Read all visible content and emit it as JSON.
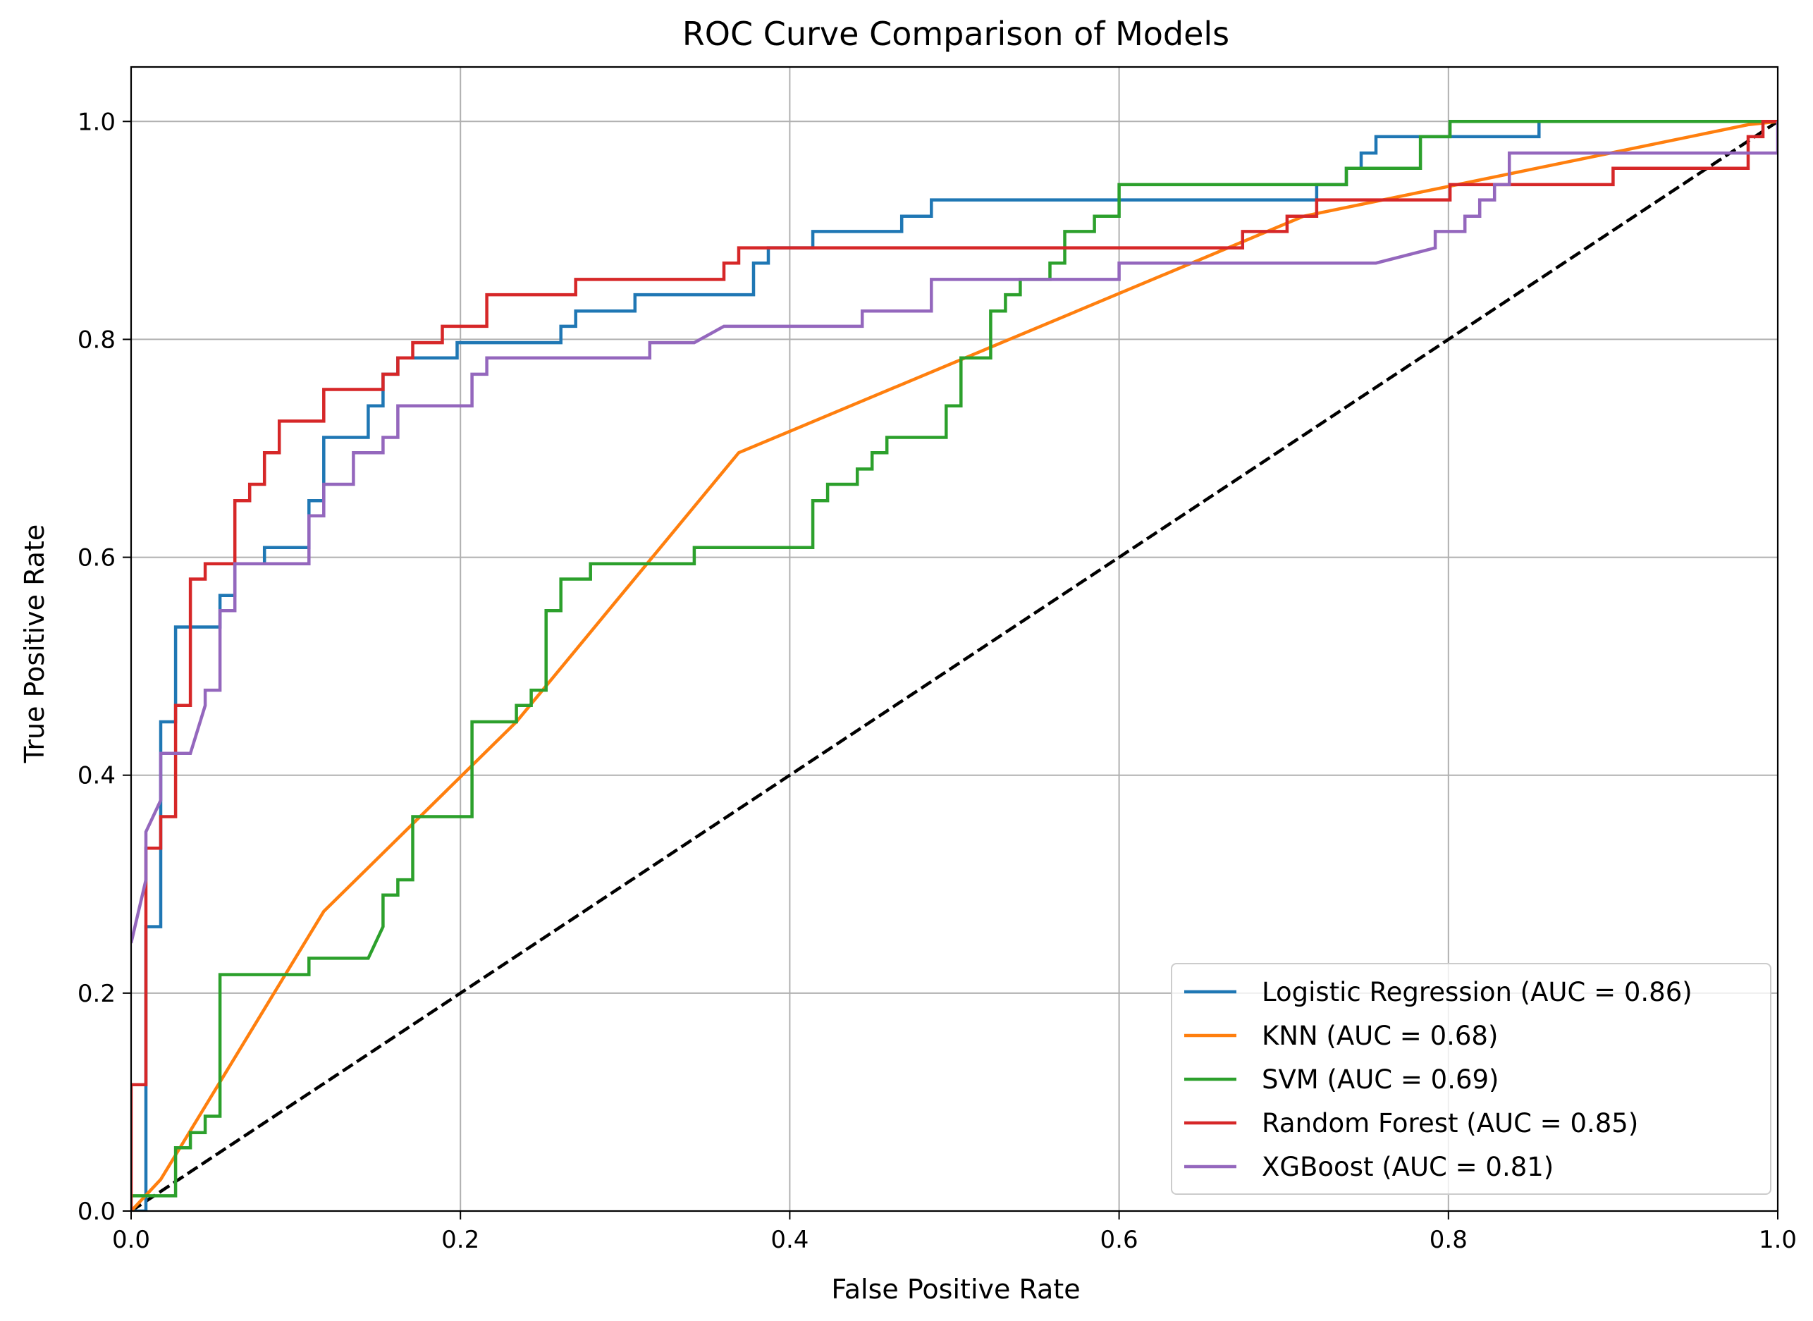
{
  "chart_data": {
    "type": "line",
    "title": "ROC Curve Comparison of Models",
    "xlabel": "False Positive Rate",
    "ylabel": "True Positive Rate",
    "xlim": [
      0.0,
      1.0
    ],
    "ylim": [
      0.0,
      1.05
    ],
    "xticks": [
      "0.0",
      "0.2",
      "0.4",
      "0.6",
      "0.8",
      "1.0"
    ],
    "yticks": [
      "0.0",
      "0.2",
      "0.4",
      "0.6",
      "0.8",
      "1.0"
    ],
    "grid": true,
    "legend_position": "lower-right",
    "series": [
      {
        "name": "Logistic Regression (AUC = 0.86)",
        "color": "#1f77b4",
        "x": [
          0.0,
          0.009,
          0.009,
          0.018,
          0.018,
          0.027,
          0.027,
          0.054,
          0.054,
          0.063,
          0.063,
          0.081,
          0.081,
          0.108,
          0.108,
          0.117,
          0.117,
          0.144,
          0.144,
          0.153,
          0.153,
          0.162,
          0.162,
          0.171,
          0.171,
          0.198,
          0.198,
          0.261,
          0.261,
          0.27,
          0.27,
          0.306,
          0.306,
          0.378,
          0.378,
          0.387,
          0.387,
          0.396,
          0.396,
          0.414,
          0.414,
          0.468,
          0.468,
          0.486,
          0.486,
          0.72,
          0.72,
          0.738,
          0.738,
          0.747,
          0.747,
          0.756,
          0.756,
          0.855,
          0.855,
          1.0
        ],
        "y": [
          0.0,
          0.0,
          0.261,
          0.261,
          0.449,
          0.449,
          0.536,
          0.536,
          0.565,
          0.565,
          0.594,
          0.594,
          0.609,
          0.609,
          0.652,
          0.652,
          0.71,
          0.71,
          0.739,
          0.739,
          0.768,
          0.768,
          0.783,
          0.783,
          0.783,
          0.783,
          0.797,
          0.797,
          0.812,
          0.812,
          0.826,
          0.826,
          0.841,
          0.841,
          0.87,
          0.87,
          0.884,
          0.884,
          0.884,
          0.884,
          0.899,
          0.899,
          0.913,
          0.913,
          0.928,
          0.928,
          0.942,
          0.942,
          0.957,
          0.957,
          0.971,
          0.971,
          0.986,
          0.986,
          1.0,
          1.0
        ]
      },
      {
        "name": "KNN (AUC = 0.68)",
        "color": "#ff7f0e",
        "x": [
          0.0,
          0.018,
          0.117,
          0.234,
          0.369,
          0.712,
          0.982,
          1.0
        ],
        "y": [
          0.0,
          0.029,
          0.275,
          0.449,
          0.696,
          0.913,
          0.997,
          1.0
        ]
      },
      {
        "name": "SVM (AUC = 0.69)",
        "color": "#2ca02c",
        "x": [
          0.0,
          0.0,
          0.027,
          0.027,
          0.036,
          0.036,
          0.045,
          0.045,
          0.054,
          0.054,
          0.108,
          0.108,
          0.144,
          0.153,
          0.153,
          0.162,
          0.162,
          0.171,
          0.171,
          0.207,
          0.207,
          0.234,
          0.234,
          0.243,
          0.243,
          0.252,
          0.252,
          0.261,
          0.261,
          0.279,
          0.279,
          0.342,
          0.342,
          0.414,
          0.414,
          0.423,
          0.423,
          0.441,
          0.441,
          0.45,
          0.45,
          0.459,
          0.459,
          0.477,
          0.477,
          0.495,
          0.495,
          0.504,
          0.504,
          0.522,
          0.522,
          0.531,
          0.531,
          0.54,
          0.54,
          0.558,
          0.558,
          0.567,
          0.567,
          0.585,
          0.585,
          0.6,
          0.6,
          0.738,
          0.738,
          0.783,
          0.783,
          0.801,
          0.801,
          1.0
        ],
        "y": [
          0.0,
          0.014,
          0.014,
          0.058,
          0.058,
          0.072,
          0.072,
          0.087,
          0.087,
          0.217,
          0.217,
          0.232,
          0.232,
          0.261,
          0.29,
          0.29,
          0.304,
          0.304,
          0.362,
          0.362,
          0.449,
          0.449,
          0.464,
          0.464,
          0.478,
          0.478,
          0.551,
          0.551,
          0.58,
          0.58,
          0.594,
          0.594,
          0.609,
          0.609,
          0.652,
          0.652,
          0.667,
          0.667,
          0.681,
          0.681,
          0.696,
          0.696,
          0.71,
          0.71,
          0.71,
          0.71,
          0.739,
          0.739,
          0.783,
          0.783,
          0.826,
          0.826,
          0.841,
          0.841,
          0.855,
          0.855,
          0.87,
          0.87,
          0.899,
          0.899,
          0.913,
          0.913,
          0.942,
          0.942,
          0.957,
          0.957,
          0.986,
          0.986,
          1.0,
          1.0
        ]
      },
      {
        "name": "Random Forest (AUC = 0.85)",
        "color": "#d62728",
        "x": [
          0.0,
          0.0,
          0.009,
          0.009,
          0.018,
          0.018,
          0.027,
          0.027,
          0.036,
          0.036,
          0.045,
          0.045,
          0.054,
          0.054,
          0.063,
          0.063,
          0.072,
          0.072,
          0.081,
          0.081,
          0.09,
          0.09,
          0.117,
          0.117,
          0.153,
          0.153,
          0.162,
          0.162,
          0.171,
          0.171,
          0.189,
          0.189,
          0.216,
          0.216,
          0.27,
          0.27,
          0.36,
          0.36,
          0.369,
          0.369,
          0.675,
          0.675,
          0.702,
          0.702,
          0.72,
          0.72,
          0.801,
          0.801,
          0.9,
          0.9,
          0.982,
          0.982,
          0.991,
          0.991,
          1.0
        ],
        "y": [
          0.0,
          0.116,
          0.116,
          0.333,
          0.333,
          0.362,
          0.362,
          0.464,
          0.464,
          0.58,
          0.58,
          0.594,
          0.594,
          0.594,
          0.594,
          0.652,
          0.652,
          0.667,
          0.667,
          0.696,
          0.696,
          0.725,
          0.725,
          0.754,
          0.754,
          0.768,
          0.768,
          0.783,
          0.783,
          0.797,
          0.797,
          0.812,
          0.812,
          0.841,
          0.841,
          0.855,
          0.855,
          0.87,
          0.87,
          0.884,
          0.884,
          0.899,
          0.899,
          0.913,
          0.913,
          0.928,
          0.928,
          0.942,
          0.942,
          0.957,
          0.957,
          0.986,
          0.986,
          1.0,
          1.0
        ]
      },
      {
        "name": "XGBoost (AUC = 0.81)",
        "color": "#9467bd",
        "x": [
          0.0,
          0.009,
          0.009,
          0.018,
          0.018,
          0.036,
          0.045,
          0.045,
          0.054,
          0.054,
          0.063,
          0.063,
          0.108,
          0.108,
          0.117,
          0.117,
          0.135,
          0.135,
          0.153,
          0.153,
          0.162,
          0.162,
          0.207,
          0.207,
          0.216,
          0.216,
          0.315,
          0.315,
          0.342,
          0.36,
          0.36,
          0.444,
          0.444,
          0.486,
          0.486,
          0.495,
          0.495,
          0.6,
          0.6,
          0.756,
          0.792,
          0.792,
          0.81,
          0.81,
          0.819,
          0.819,
          0.828,
          0.828,
          0.837,
          0.837,
          1.0,
          1.0
        ],
        "y": [
          0.246,
          0.304,
          0.348,
          0.377,
          0.42,
          0.42,
          0.464,
          0.478,
          0.478,
          0.551,
          0.551,
          0.594,
          0.594,
          0.638,
          0.638,
          0.667,
          0.667,
          0.696,
          0.696,
          0.71,
          0.71,
          0.739,
          0.739,
          0.768,
          0.768,
          0.783,
          0.783,
          0.797,
          0.797,
          0.812,
          0.812,
          0.812,
          0.826,
          0.826,
          0.855,
          0.855,
          0.855,
          0.855,
          0.87,
          0.87,
          0.884,
          0.899,
          0.899,
          0.913,
          0.913,
          0.928,
          0.928,
          0.942,
          0.942,
          0.971,
          0.971,
          1.0
        ]
      },
      {
        "name": "",
        "color": "#000000",
        "dashed": true,
        "x": [
          0.0,
          1.0
        ],
        "y": [
          0.0,
          1.0
        ]
      }
    ]
  }
}
